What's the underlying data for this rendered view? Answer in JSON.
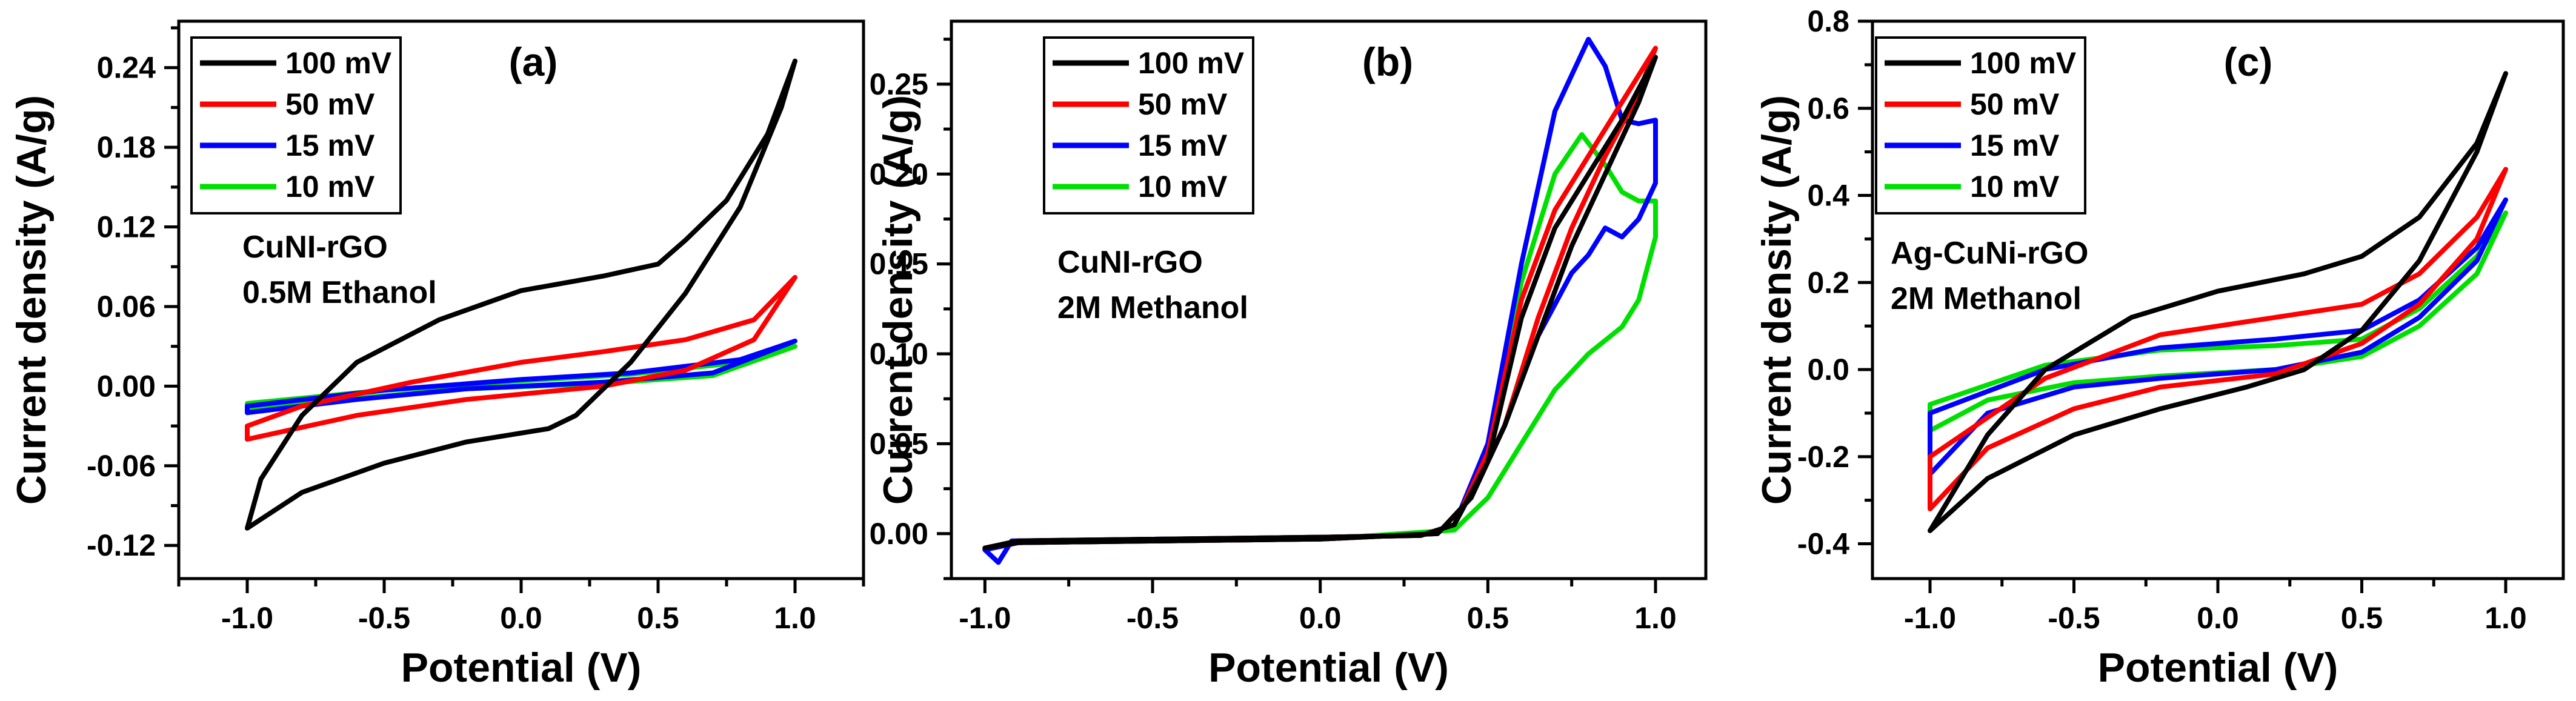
{
  "chart_data": [
    {
      "type": "line",
      "panel_label": "(a)",
      "annotations": [
        "CuNI-rGO",
        "0.5M Ethanol"
      ],
      "xlabel": "Potential (V)",
      "ylabel": "Current density (A/g)",
      "xlim": [
        -1.25,
        1.25
      ],
      "ylim": [
        -0.145,
        0.275
      ],
      "xticks": [
        -1.0,
        -0.5,
        0.0,
        0.5,
        1.0
      ],
      "xtick_labels": [
        "-1.0",
        "-0.5",
        "0.0",
        "0.5",
        "1.0"
      ],
      "yticks": [
        -0.12,
        -0.06,
        0.0,
        0.06,
        0.12,
        0.18,
        0.24
      ],
      "ytick_labels": [
        "-0.12",
        "-0.06",
        "0.00",
        "0.06",
        "0.12",
        "0.18",
        "0.24"
      ],
      "legend_position": "top-left",
      "series": [
        {
          "name": "100 mV",
          "color": "#000000",
          "points": [
            [
              -1.0,
              -0.107
            ],
            [
              -0.8,
              -0.08
            ],
            [
              -0.5,
              -0.058
            ],
            [
              -0.2,
              -0.042
            ],
            [
              0.1,
              -0.032
            ],
            [
              0.2,
              -0.022
            ],
            [
              0.4,
              0.018
            ],
            [
              0.6,
              0.07
            ],
            [
              0.8,
              0.135
            ],
            [
              0.95,
              0.21
            ],
            [
              1.0,
              0.245
            ],
            [
              0.9,
              0.19
            ],
            [
              0.75,
              0.14
            ],
            [
              0.6,
              0.11
            ],
            [
              0.5,
              0.092
            ],
            [
              0.3,
              0.083
            ],
            [
              0.0,
              0.072
            ],
            [
              -0.3,
              0.05
            ],
            [
              -0.6,
              0.018
            ],
            [
              -0.8,
              -0.022
            ],
            [
              -0.95,
              -0.07
            ],
            [
              -1.0,
              -0.107
            ]
          ]
        },
        {
          "name": "50 mV",
          "color": "#ff0000",
          "points": [
            [
              -1.0,
              -0.04
            ],
            [
              -0.6,
              -0.022
            ],
            [
              -0.2,
              -0.01
            ],
            [
              0.3,
              0.0
            ],
            [
              0.6,
              0.012
            ],
            [
              0.85,
              0.035
            ],
            [
              1.0,
              0.082
            ],
            [
              0.85,
              0.05
            ],
            [
              0.6,
              0.035
            ],
            [
              0.3,
              0.026
            ],
            [
              0.0,
              0.018
            ],
            [
              -0.4,
              0.003
            ],
            [
              -0.8,
              -0.015
            ],
            [
              -1.0,
              -0.03
            ],
            [
              -1.0,
              -0.04
            ]
          ]
        },
        {
          "name": "15 mV",
          "color": "#0000ff",
          "points": [
            [
              -1.0,
              -0.02
            ],
            [
              -0.6,
              -0.01
            ],
            [
              -0.2,
              -0.002
            ],
            [
              0.3,
              0.003
            ],
            [
              0.7,
              0.01
            ],
            [
              1.0,
              0.034
            ],
            [
              0.8,
              0.02
            ],
            [
              0.4,
              0.01
            ],
            [
              0.0,
              0.005
            ],
            [
              -0.5,
              -0.003
            ],
            [
              -1.0,
              -0.015
            ],
            [
              -1.0,
              -0.02
            ]
          ]
        },
        {
          "name": "10 mV",
          "color": "#00e000",
          "points": [
            [
              -1.0,
              -0.017
            ],
            [
              -0.6,
              -0.009
            ],
            [
              -0.2,
              -0.002
            ],
            [
              0.3,
              0.002
            ],
            [
              0.7,
              0.008
            ],
            [
              1.0,
              0.03
            ],
            [
              0.8,
              0.018
            ],
            [
              0.4,
              0.009
            ],
            [
              0.0,
              0.004
            ],
            [
              -0.5,
              -0.003
            ],
            [
              -1.0,
              -0.013
            ],
            [
              -1.0,
              -0.017
            ]
          ]
        }
      ]
    },
    {
      "type": "line",
      "panel_label": "(b)",
      "annotations": [
        "CuNI-rGO",
        "2M Methanol"
      ],
      "xlabel": "Potential (V)",
      "ylabel": "Current density (A/g)",
      "xlim": [
        -1.1,
        1.15
      ],
      "ylim": [
        -0.025,
        0.285
      ],
      "xticks": [
        -1.0,
        -0.5,
        0.0,
        0.5,
        1.0
      ],
      "xtick_labels": [
        "-1.0",
        "-0.5",
        "0.0",
        "0.5",
        "1.0"
      ],
      "yticks": [
        0.0,
        0.05,
        0.1,
        0.15,
        0.2,
        0.25
      ],
      "ytick_labels": [
        "0.00",
        "0.05",
        "0.10",
        "0.15",
        "0.20",
        "0.25"
      ],
      "legend_position": "top-left",
      "series": [
        {
          "name": "100 mV",
          "color": "#000000",
          "points": [
            [
              -1.0,
              -0.008
            ],
            [
              -0.9,
              -0.004
            ],
            [
              0.0,
              -0.002
            ],
            [
              0.3,
              -0.001
            ],
            [
              0.4,
              0.005
            ],
            [
              0.5,
              0.04
            ],
            [
              0.6,
              0.12
            ],
            [
              0.7,
              0.17
            ],
            [
              0.8,
              0.2
            ],
            [
              0.9,
              0.23
            ],
            [
              1.0,
              0.265
            ],
            [
              0.95,
              0.24
            ],
            [
              0.85,
              0.2
            ],
            [
              0.75,
              0.16
            ],
            [
              0.65,
              0.11
            ],
            [
              0.55,
              0.06
            ],
            [
              0.45,
              0.02
            ],
            [
              0.35,
              0.0
            ],
            [
              0.0,
              -0.003
            ],
            [
              -0.9,
              -0.005
            ],
            [
              -1.0,
              -0.008
            ]
          ]
        },
        {
          "name": "50 mV",
          "color": "#ff0000",
          "points": [
            [
              -1.0,
              -0.008
            ],
            [
              -0.9,
              -0.004
            ],
            [
              0.0,
              -0.002
            ],
            [
              0.3,
              -0.001
            ],
            [
              0.4,
              0.005
            ],
            [
              0.5,
              0.045
            ],
            [
              0.6,
              0.13
            ],
            [
              0.7,
              0.18
            ],
            [
              0.8,
              0.21
            ],
            [
              0.9,
              0.24
            ],
            [
              1.0,
              0.27
            ],
            [
              0.95,
              0.245
            ],
            [
              0.85,
              0.21
            ],
            [
              0.75,
              0.17
            ],
            [
              0.65,
              0.12
            ],
            [
              0.55,
              0.06
            ],
            [
              0.45,
              0.02
            ],
            [
              0.35,
              0.0
            ],
            [
              0.0,
              -0.003
            ],
            [
              -0.9,
              -0.005
            ],
            [
              -1.0,
              -0.008
            ]
          ]
        },
        {
          "name": "15 mV",
          "color": "#0000ff",
          "points": [
            [
              -1.0,
              -0.009
            ],
            [
              -0.96,
              -0.016
            ],
            [
              -0.92,
              -0.004
            ],
            [
              0.0,
              -0.002
            ],
            [
              0.3,
              -0.001
            ],
            [
              0.4,
              0.005
            ],
            [
              0.5,
              0.05
            ],
            [
              0.6,
              0.15
            ],
            [
              0.7,
              0.235
            ],
            [
              0.8,
              0.275
            ],
            [
              0.85,
              0.26
            ],
            [
              0.9,
              0.23
            ],
            [
              0.95,
              0.228
            ],
            [
              1.0,
              0.23
            ],
            [
              1.0,
              0.195
            ],
            [
              0.95,
              0.175
            ],
            [
              0.9,
              0.165
            ],
            [
              0.85,
              0.17
            ],
            [
              0.8,
              0.155
            ],
            [
              0.75,
              0.145
            ],
            [
              0.65,
              0.11
            ],
            [
              0.55,
              0.06
            ],
            [
              0.45,
              0.02
            ],
            [
              0.35,
              0.0
            ],
            [
              0.0,
              -0.003
            ],
            [
              -0.9,
              -0.005
            ],
            [
              -1.0,
              -0.009
            ]
          ]
        },
        {
          "name": "10 mV",
          "color": "#00e000",
          "points": [
            [
              -1.0,
              -0.008
            ],
            [
              -0.9,
              -0.004
            ],
            [
              0.0,
              -0.002
            ],
            [
              0.3,
              -0.001
            ],
            [
              0.4,
              0.005
            ],
            [
              0.5,
              0.05
            ],
            [
              0.6,
              0.14
            ],
            [
              0.7,
              0.2
            ],
            [
              0.78,
              0.222
            ],
            [
              0.85,
              0.205
            ],
            [
              0.9,
              0.19
            ],
            [
              0.95,
              0.185
            ],
            [
              1.0,
              0.185
            ],
            [
              1.0,
              0.165
            ],
            [
              0.95,
              0.13
            ],
            [
              0.9,
              0.115
            ],
            [
              0.8,
              0.1
            ],
            [
              0.7,
              0.08
            ],
            [
              0.6,
              0.05
            ],
            [
              0.5,
              0.02
            ],
            [
              0.4,
              0.002
            ],
            [
              0.0,
              -0.003
            ],
            [
              -0.9,
              -0.005
            ],
            [
              -1.0,
              -0.008
            ]
          ]
        }
      ]
    },
    {
      "type": "line",
      "panel_label": "(c)",
      "annotations": [
        "Ag-CuNi-rGO",
        "2M Methanol"
      ],
      "xlabel": "Potential (V)",
      "ylabel": "Current density (A/g)",
      "xlim": [
        -1.2,
        1.2
      ],
      "ylim": [
        -0.48,
        0.8
      ],
      "xticks": [
        -1.0,
        -0.5,
        0.0,
        0.5,
        1.0
      ],
      "xtick_labels": [
        "-1.0",
        "-0.5",
        "0.0",
        "0.5",
        "1.0"
      ],
      "yticks": [
        -0.4,
        -0.2,
        0.0,
        0.2,
        0.4,
        0.6,
        0.8
      ],
      "ytick_labels": [
        "-0.4",
        "-0.2",
        "0.0",
        "0.2",
        "0.4",
        "0.6",
        "0.8"
      ],
      "legend_position": "top-left",
      "series": [
        {
          "name": "100 mV",
          "color": "#000000",
          "points": [
            [
              -1.0,
              -0.37
            ],
            [
              -0.8,
              -0.25
            ],
            [
              -0.5,
              -0.15
            ],
            [
              -0.2,
              -0.09
            ],
            [
              0.1,
              -0.04
            ],
            [
              0.3,
              0.0
            ],
            [
              0.5,
              0.09
            ],
            [
              0.7,
              0.25
            ],
            [
              0.9,
              0.5
            ],
            [
              1.0,
              0.68
            ],
            [
              0.9,
              0.52
            ],
            [
              0.7,
              0.35
            ],
            [
              0.5,
              0.26
            ],
            [
              0.3,
              0.22
            ],
            [
              0.0,
              0.18
            ],
            [
              -0.3,
              0.12
            ],
            [
              -0.6,
              0.0
            ],
            [
              -0.8,
              -0.15
            ],
            [
              -1.0,
              -0.37
            ]
          ]
        },
        {
          "name": "50 mV",
          "color": "#ff0000",
          "points": [
            [
              -1.0,
              -0.32
            ],
            [
              -0.8,
              -0.18
            ],
            [
              -0.5,
              -0.09
            ],
            [
              -0.2,
              -0.04
            ],
            [
              0.2,
              -0.01
            ],
            [
              0.5,
              0.06
            ],
            [
              0.7,
              0.15
            ],
            [
              0.9,
              0.3
            ],
            [
              1.0,
              0.46
            ],
            [
              0.9,
              0.35
            ],
            [
              0.7,
              0.22
            ],
            [
              0.5,
              0.15
            ],
            [
              0.2,
              0.12
            ],
            [
              -0.2,
              0.08
            ],
            [
              -0.6,
              -0.02
            ],
            [
              -1.0,
              -0.2
            ],
            [
              -1.0,
              -0.32
            ]
          ]
        },
        {
          "name": "15 mV",
          "color": "#0000ff",
          "points": [
            [
              -1.0,
              -0.24
            ],
            [
              -0.8,
              -0.1
            ],
            [
              -0.5,
              -0.04
            ],
            [
              -0.2,
              -0.02
            ],
            [
              0.2,
              0.0
            ],
            [
              0.5,
              0.04
            ],
            [
              0.7,
              0.12
            ],
            [
              0.9,
              0.25
            ],
            [
              1.0,
              0.39
            ],
            [
              0.9,
              0.28
            ],
            [
              0.7,
              0.16
            ],
            [
              0.5,
              0.09
            ],
            [
              0.2,
              0.07
            ],
            [
              -0.2,
              0.05
            ],
            [
              -0.6,
              0.0
            ],
            [
              -1.0,
              -0.1
            ],
            [
              -1.0,
              -0.24
            ]
          ]
        },
        {
          "name": "10 mV",
          "color": "#00e000",
          "points": [
            [
              -1.0,
              -0.14
            ],
            [
              -0.8,
              -0.07
            ],
            [
              -0.5,
              -0.03
            ],
            [
              -0.2,
              -0.015
            ],
            [
              0.2,
              0.0
            ],
            [
              0.5,
              0.03
            ],
            [
              0.7,
              0.1
            ],
            [
              0.9,
              0.22
            ],
            [
              1.0,
              0.36
            ],
            [
              0.9,
              0.26
            ],
            [
              0.7,
              0.14
            ],
            [
              0.5,
              0.07
            ],
            [
              0.2,
              0.055
            ],
            [
              -0.2,
              0.045
            ],
            [
              -0.6,
              0.01
            ],
            [
              -1.0,
              -0.08
            ],
            [
              -1.0,
              -0.14
            ]
          ]
        }
      ]
    }
  ]
}
